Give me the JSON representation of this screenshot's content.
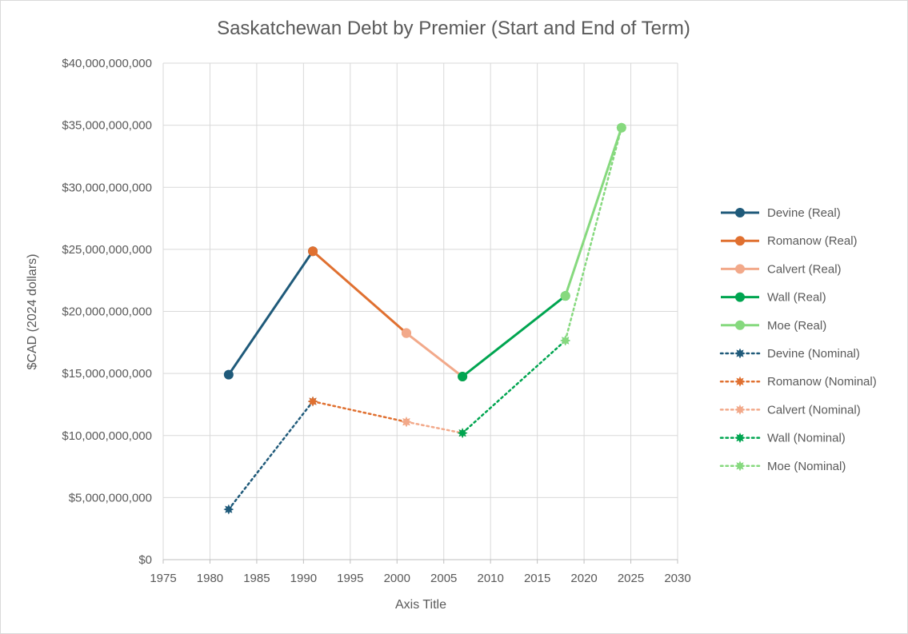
{
  "chart_data": {
    "type": "line",
    "title": "Saskatchewan Debt by Premier (Start and End of Term)",
    "xlabel": "Axis Title",
    "ylabel": "$CAD (2024 dollars)",
    "xlim": [
      1975,
      2030
    ],
    "ylim": [
      0,
      40000000000
    ],
    "x_ticks": [
      1975,
      1980,
      1985,
      1990,
      1995,
      2000,
      2005,
      2010,
      2015,
      2020,
      2025,
      2030
    ],
    "y_ticks": [
      0,
      5000000000,
      10000000000,
      15000000000,
      20000000000,
      25000000000,
      30000000000,
      35000000000,
      40000000000
    ],
    "y_tick_labels": [
      "$0",
      "$5,000,000,000",
      "$10,000,000,000",
      "$15,000,000,000",
      "$20,000,000,000",
      "$25,000,000,000",
      "$30,000,000,000",
      "$35,000,000,000",
      "$40,000,000,000"
    ],
    "grid": true,
    "legend_position": "right",
    "series": [
      {
        "name": "Devine (Real)",
        "color": "#1f5a7a",
        "style": "solid",
        "marker": "circle",
        "x": [
          1982,
          1991
        ],
        "y": [
          14900000000,
          24850000000
        ]
      },
      {
        "name": "Romanow (Real)",
        "color": "#e07030",
        "style": "solid",
        "marker": "circle",
        "x": [
          1991,
          2001
        ],
        "y": [
          24850000000,
          18250000000
        ]
      },
      {
        "name": "Calvert (Real)",
        "color": "#f2a98a",
        "style": "solid",
        "marker": "circle",
        "x": [
          2001,
          2007
        ],
        "y": [
          18250000000,
          14750000000
        ]
      },
      {
        "name": "Wall (Real)",
        "color": "#00a550",
        "style": "solid",
        "marker": "circle",
        "x": [
          2007,
          2018
        ],
        "y": [
          14750000000,
          21250000000
        ]
      },
      {
        "name": "Moe (Real)",
        "color": "#86d97e",
        "style": "solid",
        "marker": "circle",
        "x": [
          2018,
          2024
        ],
        "y": [
          21250000000,
          34800000000
        ]
      },
      {
        "name": "Devine (Nominal)",
        "color": "#1f5a7a",
        "style": "dotted",
        "marker": "star",
        "x": [
          1982,
          1991
        ],
        "y": [
          4050000000,
          12750000000
        ]
      },
      {
        "name": "Romanow (Nominal)",
        "color": "#e07030",
        "style": "dotted",
        "marker": "star",
        "x": [
          1991,
          2001
        ],
        "y": [
          12750000000,
          11100000000
        ]
      },
      {
        "name": "Calvert (Nominal)",
        "color": "#f2a98a",
        "style": "dotted",
        "marker": "star",
        "x": [
          2001,
          2007
        ],
        "y": [
          11100000000,
          10200000000
        ]
      },
      {
        "name": "Wall (Nominal)",
        "color": "#00a550",
        "style": "dotted",
        "marker": "star",
        "x": [
          2007,
          2018
        ],
        "y": [
          10200000000,
          17650000000
        ]
      },
      {
        "name": "Moe (Nominal)",
        "color": "#86d97e",
        "style": "dotted",
        "marker": "star",
        "x": [
          2018,
          2024
        ],
        "y": [
          17650000000,
          34800000000
        ]
      }
    ]
  }
}
